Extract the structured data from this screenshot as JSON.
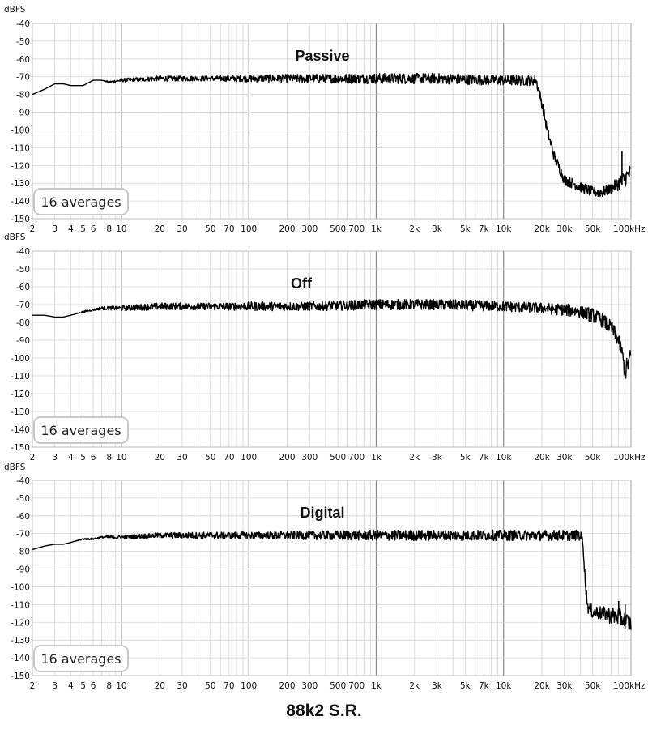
{
  "footer_title": "88k2 S.R.",
  "colors": {
    "trace": "#000000",
    "grid": "#d2d2d2",
    "frame": "#bdbdbd",
    "decade": "#8a8a8a"
  },
  "chart_data": [
    {
      "type": "line",
      "title": "Passive",
      "ylabel": "dBFS",
      "xlabel": "",
      "x_scale": "log",
      "xlim": [
        2,
        100000
      ],
      "ylim": [
        -150,
        -40
      ],
      "grid": true,
      "y_ticks": [
        "-40",
        "-50",
        "-60",
        "-70",
        "-80",
        "-90",
        "-100",
        "-110",
        "-120",
        "-130",
        "-140",
        "-150"
      ],
      "x_ticks": [
        {
          "v": 2,
          "label": "2"
        },
        {
          "v": 3,
          "label": "3"
        },
        {
          "v": 4,
          "label": "4"
        },
        {
          "v": 5,
          "label": "5"
        },
        {
          "v": 6,
          "label": "6"
        },
        {
          "v": 8,
          "label": "8"
        },
        {
          "v": 10,
          "label": "10"
        },
        {
          "v": 20,
          "label": "20"
        },
        {
          "v": 30,
          "label": "30"
        },
        {
          "v": 50,
          "label": "50"
        },
        {
          "v": 70,
          "label": "70"
        },
        {
          "v": 100,
          "label": "100"
        },
        {
          "v": 200,
          "label": "200"
        },
        {
          "v": 300,
          "label": "300"
        },
        {
          "v": 500,
          "label": "500"
        },
        {
          "v": 700,
          "label": "700"
        },
        {
          "v": 1000,
          "label": "1k"
        },
        {
          "v": 2000,
          "label": "2k"
        },
        {
          "v": 3000,
          "label": "3k"
        },
        {
          "v": 5000,
          "label": "5k"
        },
        {
          "v": 7000,
          "label": "7k"
        },
        {
          "v": 10000,
          "label": "10k"
        },
        {
          "v": 20000,
          "label": "20k"
        },
        {
          "v": 30000,
          "label": "30k"
        },
        {
          "v": 50000,
          "label": "50k"
        },
        {
          "v": 100000,
          "label": "100kHz"
        }
      ],
      "badge": "16 averages",
      "series": [
        {
          "color": "#000000",
          "x": [
            2,
            2.5,
            3,
            3.5,
            4,
            5,
            6,
            7,
            8,
            10,
            20,
            50,
            100,
            300,
            1000,
            3000,
            10000,
            18000,
            20000,
            22000,
            25000,
            30000,
            40000,
            50000,
            60000,
            70000,
            80000,
            90000,
            100000
          ],
          "y": [
            -80,
            -77,
            -74,
            -74,
            -75,
            -75,
            -72,
            -72,
            -73,
            -72,
            -71,
            -71,
            -71,
            -71,
            -71,
            -71,
            -72,
            -72,
            -85,
            -100,
            -115,
            -128,
            -132,
            -135,
            -135,
            -133,
            -130,
            -127,
            -124
          ],
          "band_db": [
            0,
            0,
            0,
            0,
            0,
            0,
            0,
            0,
            0.5,
            1,
            1.5,
            1.5,
            2,
            2.5,
            3,
            3,
            3,
            3,
            3,
            3,
            3,
            3,
            3,
            3,
            3,
            3,
            4,
            5,
            5
          ]
        }
      ],
      "annotations": [
        {
          "x": 85000,
          "y_from": -131,
          "y_to": -112,
          "label": ""
        }
      ]
    },
    {
      "type": "line",
      "title": "Off",
      "ylabel": "dBFS",
      "xlabel": "",
      "x_scale": "log",
      "xlim": [
        2,
        100000
      ],
      "ylim": [
        -150,
        -40
      ],
      "grid": true,
      "y_ticks": [
        "-40",
        "-50",
        "-60",
        "-70",
        "-80",
        "-90",
        "-100",
        "-110",
        "-120",
        "-130",
        "-140",
        "-150"
      ],
      "x_ticks": [
        {
          "v": 2,
          "label": "2"
        },
        {
          "v": 3,
          "label": "3"
        },
        {
          "v": 4,
          "label": "4"
        },
        {
          "v": 5,
          "label": "5"
        },
        {
          "v": 6,
          "label": "6"
        },
        {
          "v": 8,
          "label": "8"
        },
        {
          "v": 10,
          "label": "10"
        },
        {
          "v": 20,
          "label": "20"
        },
        {
          "v": 30,
          "label": "30"
        },
        {
          "v": 50,
          "label": "50"
        },
        {
          "v": 70,
          "label": "70"
        },
        {
          "v": 100,
          "label": "100"
        },
        {
          "v": 200,
          "label": "200"
        },
        {
          "v": 300,
          "label": "300"
        },
        {
          "v": 500,
          "label": "500"
        },
        {
          "v": 700,
          "label": "700"
        },
        {
          "v": 1000,
          "label": "1k"
        },
        {
          "v": 2000,
          "label": "2k"
        },
        {
          "v": 3000,
          "label": "3k"
        },
        {
          "v": 5000,
          "label": "5k"
        },
        {
          "v": 7000,
          "label": "7k"
        },
        {
          "v": 10000,
          "label": "10k"
        },
        {
          "v": 20000,
          "label": "20k"
        },
        {
          "v": 30000,
          "label": "30k"
        },
        {
          "v": 50000,
          "label": "50k"
        },
        {
          "v": 100000,
          "label": "100kHz"
        }
      ],
      "badge": "16 averages",
      "series": [
        {
          "color": "#000000",
          "x": [
            2,
            2.5,
            3,
            3.5,
            4,
            5,
            6,
            7,
            8,
            10,
            20,
            50,
            100,
            300,
            1000,
            3000,
            10000,
            20000,
            30000,
            40000,
            50000,
            60000,
            70000,
            80000,
            85000,
            90000,
            95000,
            100000
          ],
          "y": [
            -76,
            -76,
            -77,
            -77,
            -76,
            -74,
            -73,
            -72,
            -72,
            -72,
            -71,
            -71,
            -71,
            -71,
            -70,
            -70,
            -71,
            -72,
            -73,
            -74,
            -76,
            -79,
            -83,
            -90,
            -97,
            -108,
            -103,
            -98
          ],
          "band_db": [
            0,
            0,
            0,
            0,
            0,
            0.5,
            0.5,
            1,
            1,
            1.5,
            2,
            2,
            2.5,
            2.5,
            3,
            3,
            3,
            3,
            3.5,
            3.5,
            4,
            4,
            4,
            4,
            4,
            6,
            5,
            4
          ]
        }
      ],
      "annotations": []
    },
    {
      "type": "line",
      "title": "Digital",
      "ylabel": "dBFS",
      "xlabel": "",
      "x_scale": "log",
      "xlim": [
        2,
        100000
      ],
      "ylim": [
        -150,
        -40
      ],
      "grid": true,
      "y_ticks": [
        "-40",
        "-50",
        "-60",
        "-70",
        "-80",
        "-90",
        "-100",
        "-110",
        "-120",
        "-130",
        "-140",
        "-150"
      ],
      "x_ticks": [
        {
          "v": 2,
          "label": "2"
        },
        {
          "v": 3,
          "label": "3"
        },
        {
          "v": 4,
          "label": "4"
        },
        {
          "v": 5,
          "label": "5"
        },
        {
          "v": 6,
          "label": "6"
        },
        {
          "v": 8,
          "label": "8"
        },
        {
          "v": 10,
          "label": "10"
        },
        {
          "v": 20,
          "label": "20"
        },
        {
          "v": 30,
          "label": "30"
        },
        {
          "v": 50,
          "label": "50"
        },
        {
          "v": 70,
          "label": "70"
        },
        {
          "v": 100,
          "label": "100"
        },
        {
          "v": 200,
          "label": "200"
        },
        {
          "v": 300,
          "label": "300"
        },
        {
          "v": 500,
          "label": "500"
        },
        {
          "v": 700,
          "label": "700"
        },
        {
          "v": 1000,
          "label": "1k"
        },
        {
          "v": 2000,
          "label": "2k"
        },
        {
          "v": 3000,
          "label": "3k"
        },
        {
          "v": 5000,
          "label": "5k"
        },
        {
          "v": 7000,
          "label": "7k"
        },
        {
          "v": 10000,
          "label": "10k"
        },
        {
          "v": 20000,
          "label": "20k"
        },
        {
          "v": 30000,
          "label": "30k"
        },
        {
          "v": 50000,
          "label": "50k"
        },
        {
          "v": 100000,
          "label": "100kHz"
        }
      ],
      "badge": "16 averages",
      "series": [
        {
          "color": "#000000",
          "x": [
            2,
            2.5,
            3,
            3.5,
            4,
            5,
            6,
            7,
            8,
            10,
            20,
            50,
            100,
            300,
            1000,
            3000,
            10000,
            30000,
            40000,
            42000,
            44000,
            46000,
            50000,
            60000,
            70000,
            80000,
            90000,
            100000
          ],
          "y": [
            -79,
            -77,
            -76,
            -76,
            -75,
            -73,
            -73,
            -72,
            -72,
            -72,
            -71,
            -71,
            -71,
            -71,
            -71,
            -71,
            -71,
            -71,
            -71,
            -75,
            -100,
            -112,
            -114,
            -115,
            -116,
            -117,
            -119,
            -121
          ],
          "band_db": [
            0,
            0,
            0,
            0,
            0,
            0.5,
            0.5,
            0.5,
            1,
            1,
            1.5,
            2,
            2,
            2.5,
            3,
            3,
            3,
            3,
            3,
            3,
            3,
            3,
            4,
            4,
            5,
            5,
            5,
            5
          ]
        }
      ],
      "annotations": [
        {
          "x": 80000,
          "y_from": -115,
          "y_to": -108,
          "label": ""
        },
        {
          "x": 90000,
          "y_from": -118,
          "y_to": -110,
          "label": ""
        }
      ]
    }
  ]
}
